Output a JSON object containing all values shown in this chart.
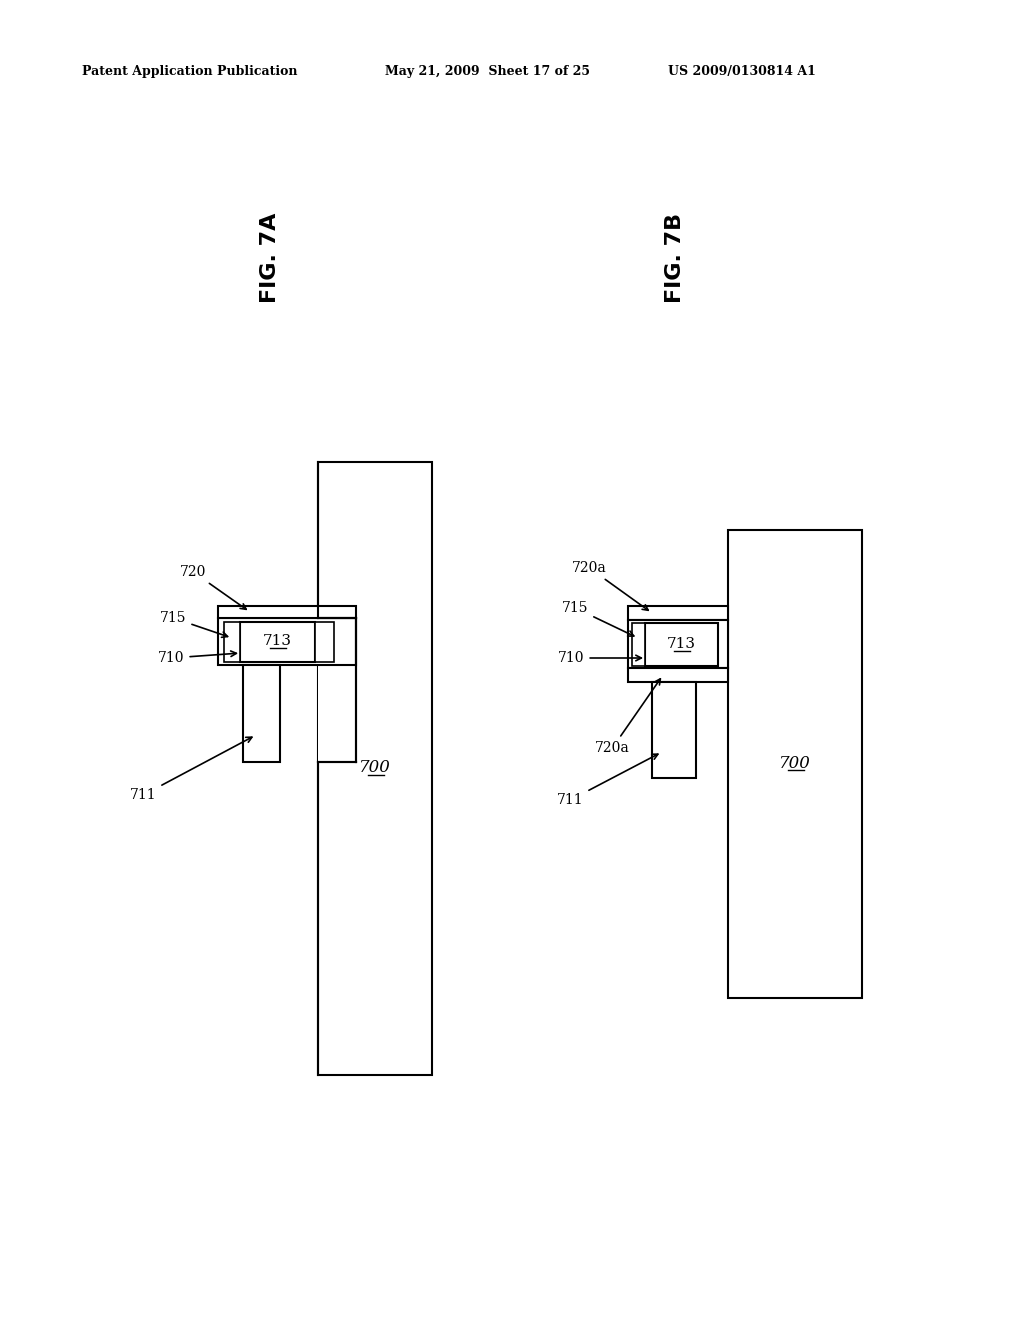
{
  "header_left": "Patent Application Publication",
  "header_mid": "May 21, 2009  Sheet 17 of 25",
  "header_right": "US 2009/0130814 A1",
  "fig_a_label": "FIG. 7A",
  "fig_b_label": "FIG. 7B",
  "bg_color": "#ffffff",
  "line_color": "#000000"
}
